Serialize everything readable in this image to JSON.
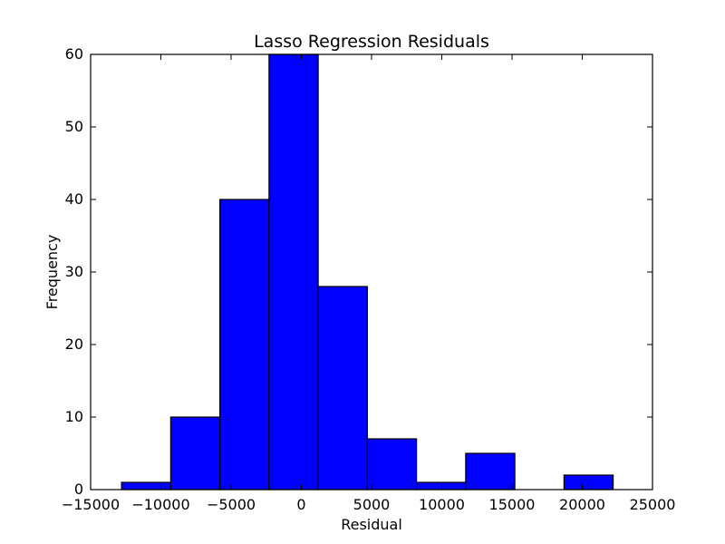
{
  "chart_data": {
    "type": "bar",
    "title": "Lasso Regression Residuals",
    "xlabel": "Residual",
    "ylabel": "Frequency",
    "xlim": [
      -15000,
      25000
    ],
    "ylim": [
      0,
      60
    ],
    "xticks": [
      -15000,
      -10000,
      -5000,
      0,
      5000,
      10000,
      15000,
      20000,
      25000
    ],
    "xtick_labels": [
      "−15000",
      "−10000",
      "−5000",
      "0",
      "5000",
      "10000",
      "15000",
      "20000",
      "25000"
    ],
    "yticks": [
      0,
      10,
      20,
      30,
      40,
      50,
      60
    ],
    "ytick_labels": [
      "0",
      "10",
      "20",
      "30",
      "40",
      "50",
      "60"
    ],
    "bin_edges": [
      -12800,
      -9300,
      -5800,
      -2300,
      1200,
      4700,
      8200,
      11700,
      15200,
      18700,
      22200
    ],
    "values": [
      1,
      10,
      40,
      60,
      28,
      7,
      1,
      5,
      0,
      2
    ],
    "bar_color": "#0000ff",
    "grid": false,
    "legend": "none"
  }
}
